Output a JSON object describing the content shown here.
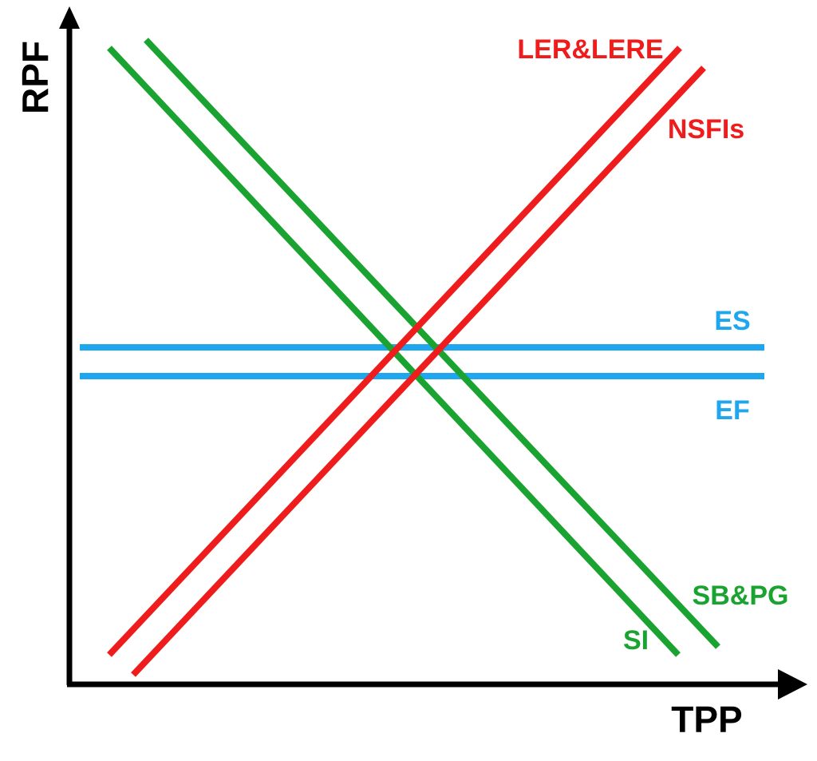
{
  "axes": {
    "y_label": "RPF",
    "x_label": "TPP"
  },
  "lines": [
    {
      "label": "LER&LERE"
    },
    {
      "label": "NSFIs"
    },
    {
      "label": "ES"
    },
    {
      "label": "EF"
    },
    {
      "label": "SB&PG"
    },
    {
      "label": "SI"
    }
  ]
}
